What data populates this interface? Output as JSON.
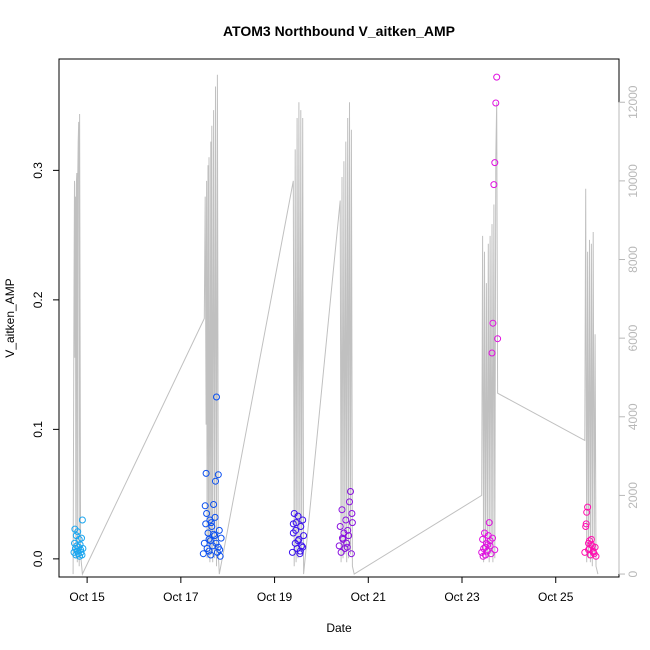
{
  "chart_data": {
    "type": "scatter",
    "title": "ATOM3 Northbound V_aitken_AMP",
    "xlabel": "Date",
    "ylabel": "V_aitken_AMP",
    "xlim": [
      14.4,
      26.35
    ],
    "ylim": [
      -0.014,
      0.386
    ],
    "y2lim": [
      -75,
      13100
    ],
    "xticks": [
      {
        "value": 15,
        "label": "Oct 15"
      },
      {
        "value": 17,
        "label": "Oct 17"
      },
      {
        "value": 19,
        "label": "Oct 19"
      },
      {
        "value": 21,
        "label": "Oct 21"
      },
      {
        "value": 23,
        "label": "Oct 23"
      },
      {
        "value": 25,
        "label": "Oct 25"
      }
    ],
    "yticks": [
      {
        "value": 0.0,
        "label": "0.0"
      },
      {
        "value": 0.1,
        "label": "0.1"
      },
      {
        "value": 0.2,
        "label": "0.2"
      },
      {
        "value": 0.3,
        "label": "0.3"
      }
    ],
    "y2ticks": [
      {
        "value": 0,
        "label": "0"
      },
      {
        "value": 2000,
        "label": "2000"
      },
      {
        "value": 4000,
        "label": "4000"
      },
      {
        "value": 6000,
        "label": "6000"
      },
      {
        "value": 8000,
        "label": "8000"
      },
      {
        "value": 10000,
        "label": "10000"
      },
      {
        "value": 12000,
        "label": "12000"
      }
    ],
    "colors": {
      "day1": "#1aa6f0",
      "day2": "#0a4ff0",
      "day3": "#3a10f0",
      "day4": "#8a10e0",
      "day5": "#e010e0",
      "day6": "#ff10b0",
      "altitude_line": "#c0c0c0"
    },
    "flights": [
      {
        "color": "#1aa6f0",
        "x": [
          14.72,
          14.73,
          14.74,
          14.75,
          14.76,
          14.77,
          14.78,
          14.79,
          14.8,
          14.81,
          14.82,
          14.83,
          14.84,
          14.85,
          14.86,
          14.87,
          14.88,
          14.89,
          14.9,
          14.91
        ],
        "y": [
          0.005,
          0.012,
          0.023,
          0.008,
          0.003,
          0.018,
          0.01,
          0.006,
          0.021,
          0.004,
          0.009,
          0.015,
          0.002,
          0.011,
          0.007,
          0.005,
          0.016,
          0.003,
          0.03,
          0.008
        ]
      },
      {
        "color": "#0a4ff0",
        "x": [
          17.48,
          17.5,
          17.52,
          17.54,
          17.56,
          17.58,
          17.6,
          17.62,
          17.64,
          17.66,
          17.68,
          17.7,
          17.72,
          17.74,
          17.76,
          17.78,
          17.8,
          17.82,
          17.84,
          17.86,
          17.55,
          17.65,
          17.75,
          17.6,
          17.7,
          17.8,
          17.53,
          17.63,
          17.73,
          17.83
        ],
        "y": [
          0.004,
          0.012,
          0.041,
          0.066,
          0.008,
          0.02,
          0.015,
          0.03,
          0.003,
          0.025,
          0.01,
          0.042,
          0.018,
          0.06,
          0.125,
          0.005,
          0.065,
          0.022,
          0.002,
          0.016,
          0.035,
          0.028,
          0.012,
          0.006,
          0.019,
          0.009,
          0.027,
          0.014,
          0.032,
          0.007
        ]
      },
      {
        "color": "#3a10f0",
        "x": [
          19.38,
          19.4,
          19.42,
          19.44,
          19.46,
          19.48,
          19.5,
          19.52,
          19.54,
          19.56,
          19.58,
          19.6,
          19.62,
          19.45,
          19.55,
          19.5,
          19.4,
          19.6
        ],
        "y": [
          0.005,
          0.02,
          0.035,
          0.012,
          0.028,
          0.008,
          0.033,
          0.015,
          0.004,
          0.025,
          0.01,
          0.03,
          0.018,
          0.022,
          0.006,
          0.014,
          0.027,
          0.009
        ]
      },
      {
        "color": "#8a10e0",
        "x": [
          20.38,
          20.4,
          20.42,
          20.44,
          20.46,
          20.48,
          20.5,
          20.52,
          20.54,
          20.56,
          20.58,
          20.6,
          20.62,
          20.64,
          20.66,
          20.45,
          20.55,
          20.65
        ],
        "y": [
          0.01,
          0.025,
          0.005,
          0.038,
          0.015,
          0.02,
          0.008,
          0.03,
          0.012,
          0.022,
          0.018,
          0.044,
          0.052,
          0.004,
          0.028,
          0.016,
          0.009,
          0.035
        ]
      },
      {
        "color": "#e010e0",
        "x": [
          23.42,
          23.44,
          23.46,
          23.48,
          23.5,
          23.52,
          23.54,
          23.56,
          23.58,
          23.6,
          23.62,
          23.64,
          23.66,
          23.68,
          23.7,
          23.72,
          23.74,
          23.76,
          23.5,
          23.6,
          23.7,
          23.55,
          23.65,
          23.45
        ],
        "y": [
          0.005,
          0.015,
          0.008,
          0.02,
          0.003,
          0.012,
          0.006,
          0.018,
          0.028,
          0.01,
          0.004,
          0.159,
          0.182,
          0.289,
          0.306,
          0.352,
          0.372,
          0.17,
          0.009,
          0.014,
          0.007,
          0.011,
          0.016,
          0.002
        ]
      },
      {
        "color": "#ff10b0",
        "x": [
          25.62,
          25.64,
          25.66,
          25.68,
          25.7,
          25.72,
          25.74,
          25.76,
          25.78,
          25.8,
          25.82,
          25.84,
          25.86,
          25.7,
          25.75,
          25.8,
          25.65,
          25.72
        ],
        "y": [
          0.005,
          0.025,
          0.036,
          0.04,
          0.012,
          0.008,
          0.003,
          0.015,
          0.01,
          0.006,
          0.004,
          0.009,
          0.002,
          0.007,
          0.011,
          0.005,
          0.027,
          0.014
        ]
      }
    ],
    "altitude_trace": [
      [
        14.7,
        0
      ],
      [
        14.72,
        7200
      ],
      [
        14.73,
        10000
      ],
      [
        14.74,
        5500
      ],
      [
        14.75,
        9600
      ],
      [
        14.76,
        400
      ],
      [
        14.77,
        9900
      ],
      [
        14.78,
        10200
      ],
      [
        14.79,
        300
      ],
      [
        14.8,
        10000
      ],
      [
        14.81,
        11000
      ],
      [
        14.82,
        11500
      ],
      [
        14.83,
        200
      ],
      [
        14.84,
        11700
      ],
      [
        14.86,
        500
      ],
      [
        14.9,
        0
      ],
      [
        17.5,
        6500
      ],
      [
        17.52,
        9600
      ],
      [
        17.54,
        3800
      ],
      [
        17.55,
        10000
      ],
      [
        17.56,
        400
      ],
      [
        17.58,
        10400
      ],
      [
        17.59,
        700
      ],
      [
        17.6,
        10600
      ],
      [
        17.62,
        300
      ],
      [
        17.64,
        11000
      ],
      [
        17.65,
        500
      ],
      [
        17.66,
        11400
      ],
      [
        17.68,
        300
      ],
      [
        17.7,
        11800
      ],
      [
        17.72,
        400
      ],
      [
        17.74,
        12400
      ],
      [
        17.76,
        200
      ],
      [
        17.78,
        12700
      ],
      [
        17.8,
        500
      ],
      [
        17.82,
        0
      ],
      [
        19.4,
        10000
      ],
      [
        19.42,
        200
      ],
      [
        19.44,
        10800
      ],
      [
        19.46,
        300
      ],
      [
        19.48,
        11600
      ],
      [
        19.5,
        400
      ],
      [
        19.52,
        12000
      ],
      [
        19.54,
        600
      ],
      [
        19.56,
        11800
      ],
      [
        19.58,
        500
      ],
      [
        19.6,
        11600
      ],
      [
        19.62,
        0
      ],
      [
        20.4,
        9500
      ],
      [
        20.42,
        300
      ],
      [
        20.44,
        10100
      ],
      [
        20.46,
        400
      ],
      [
        20.48,
        10500
      ],
      [
        20.5,
        500
      ],
      [
        20.52,
        11000
      ],
      [
        20.54,
        300
      ],
      [
        20.56,
        11600
      ],
      [
        20.58,
        400
      ],
      [
        20.6,
        12000
      ],
      [
        20.62,
        500
      ],
      [
        20.64,
        11300
      ],
      [
        20.66,
        200
      ],
      [
        20.7,
        0
      ],
      [
        23.42,
        2000
      ],
      [
        23.44,
        8600
      ],
      [
        23.46,
        300
      ],
      [
        23.48,
        8200
      ],
      [
        23.5,
        500
      ],
      [
        23.52,
        7400
      ],
      [
        23.54,
        400
      ],
      [
        23.56,
        8400
      ],
      [
        23.58,
        300
      ],
      [
        23.6,
        8600
      ],
      [
        23.62,
        500
      ],
      [
        23.64,
        8900
      ],
      [
        23.66,
        300
      ],
      [
        23.68,
        9400
      ],
      [
        23.7,
        400
      ],
      [
        23.72,
        10600
      ],
      [
        23.74,
        12000
      ],
      [
        23.76,
        4600
      ],
      [
        25.62,
        3400
      ],
      [
        25.64,
        9800
      ],
      [
        25.66,
        300
      ],
      [
        25.68,
        8200
      ],
      [
        25.7,
        400
      ],
      [
        25.72,
        8500
      ],
      [
        25.74,
        300
      ],
      [
        25.76,
        8400
      ],
      [
        25.78,
        200
      ],
      [
        25.8,
        8700
      ],
      [
        25.82,
        500
      ],
      [
        25.84,
        6100
      ],
      [
        25.86,
        200
      ],
      [
        25.9,
        0
      ]
    ]
  }
}
